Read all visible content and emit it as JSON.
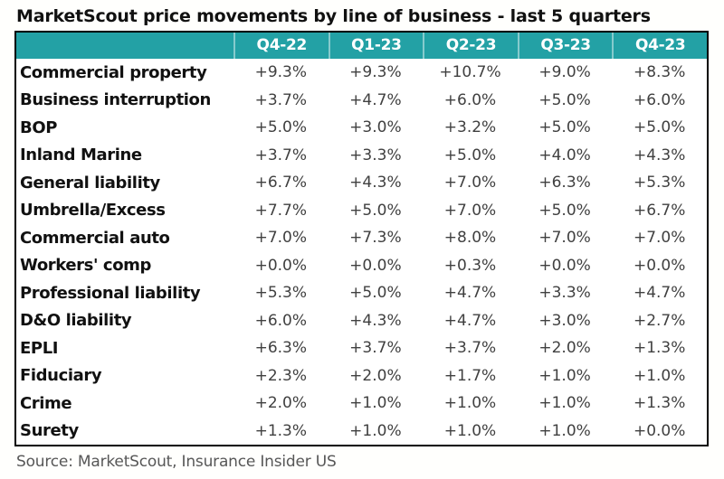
{
  "title": "MarketScout price movements by line of business - last 5 quarters",
  "source": "Source: MarketScout, Insurance Insider US",
  "colors": {
    "header_bg": "#23a1a5",
    "header_text": "#ffffff",
    "border": "#000000",
    "value_text": "#404040",
    "label_text": "#111111",
    "source_text": "#575757"
  },
  "chart_data": {
    "type": "table",
    "title": "MarketScout price movements by line of business - last 5 quarters",
    "columns": [
      "",
      "Q4-22",
      "Q1-23",
      "Q2-23",
      "Q3-23",
      "Q4-23"
    ],
    "rows": [
      {
        "label": "Commercial property",
        "values": [
          "+9.3%",
          "+9.3%",
          "+10.7%",
          "+9.0%",
          "+8.3%"
        ]
      },
      {
        "label": "Business interruption",
        "values": [
          "+3.7%",
          "+4.7%",
          "+6.0%",
          "+5.0%",
          "+6.0%"
        ]
      },
      {
        "label": "BOP",
        "values": [
          "+5.0%",
          "+3.0%",
          "+3.2%",
          "+5.0%",
          "+5.0%"
        ]
      },
      {
        "label": "Inland Marine",
        "values": [
          "+3.7%",
          "+3.3%",
          "+5.0%",
          "+4.0%",
          "+4.3%"
        ]
      },
      {
        "label": "General liability",
        "values": [
          "+6.7%",
          "+4.3%",
          "+7.0%",
          "+6.3%",
          "+5.3%"
        ]
      },
      {
        "label": "Umbrella/Excess",
        "values": [
          "+7.7%",
          "+5.0%",
          "+7.0%",
          "+5.0%",
          "+6.7%"
        ]
      },
      {
        "label": "Commercial auto",
        "values": [
          "+7.0%",
          "+7.3%",
          "+8.0%",
          "+7.0%",
          "+7.0%"
        ]
      },
      {
        "label": "Workers' comp",
        "values": [
          "+0.0%",
          "+0.0%",
          "+0.3%",
          "+0.0%",
          "+0.0%"
        ]
      },
      {
        "label": "Professional liability",
        "values": [
          "+5.3%",
          "+5.0%",
          "+4.7%",
          "+3.3%",
          "+4.7%"
        ]
      },
      {
        "label": "D&O liability",
        "values": [
          "+6.0%",
          "+4.3%",
          "+4.7%",
          "+3.0%",
          "+2.7%"
        ]
      },
      {
        "label": "EPLI",
        "values": [
          "+6.3%",
          "+3.7%",
          "+3.7%",
          "+2.0%",
          "+1.3%"
        ]
      },
      {
        "label": "Fiduciary",
        "values": [
          "+2.3%",
          "+2.0%",
          "+1.7%",
          "+1.0%",
          "+1.0%"
        ]
      },
      {
        "label": "Crime",
        "values": [
          "+2.0%",
          "+1.0%",
          "+1.0%",
          "+1.0%",
          "+1.3%"
        ]
      },
      {
        "label": "Surety",
        "values": [
          "+1.3%",
          "+1.0%",
          "+1.0%",
          "+1.0%",
          "+0.0%"
        ]
      }
    ]
  }
}
